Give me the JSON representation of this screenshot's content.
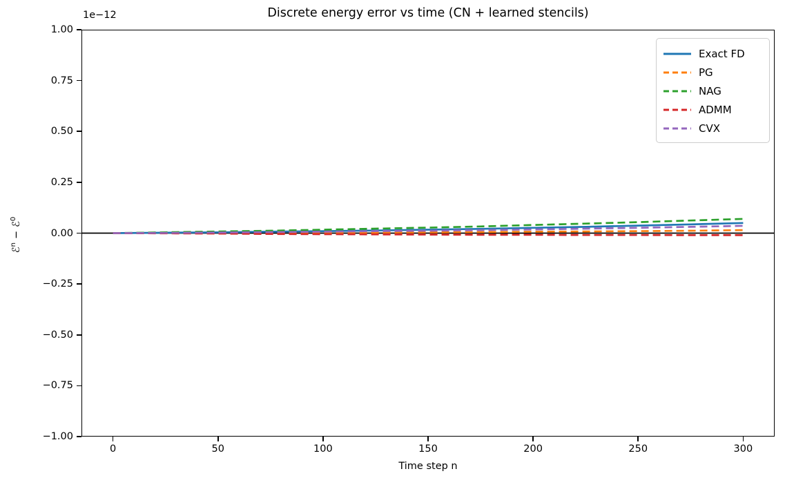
{
  "chart_data": {
    "type": "line",
    "title": "Discrete energy error vs time (CN + learned stencils)",
    "xlabel": "Time step n",
    "ylabel": "ℰⁿ − ℰ⁰",
    "ylabel_parts": {
      "e_n": "ℰ",
      "sup_n": "n",
      "minus": "−",
      "e_0": "ℰ",
      "sup_0": "0"
    },
    "y_offset_text": "1e−12",
    "unit_scale": 1e-12,
    "xlim": [
      -15,
      315
    ],
    "ylim": [
      -1.0,
      1.0
    ],
    "x_ticks": [
      0,
      50,
      100,
      150,
      200,
      250,
      300
    ],
    "x_tick_labels": [
      "0",
      "50",
      "100",
      "150",
      "200",
      "250",
      "300"
    ],
    "y_ticks": [
      1.0,
      0.75,
      0.5,
      0.25,
      0.0,
      -0.25,
      -0.5,
      -0.75,
      -1.0
    ],
    "y_tick_labels": [
      "1.00",
      "0.75",
      "0.50",
      "0.25",
      "0.00",
      "−0.25",
      "−0.50",
      "−0.75",
      "−1.00"
    ],
    "grid": false,
    "zero_line": true,
    "legend_position": "upper right",
    "x": [
      0,
      25,
      50,
      75,
      100,
      125,
      150,
      175,
      200,
      225,
      250,
      275,
      300
    ],
    "series": [
      {
        "name": "Exact FD",
        "color": "#1f77b4",
        "dash": "solid",
        "values": [
          0.0,
          0.002,
          0.004,
          0.007,
          0.01,
          0.013,
          0.017,
          0.021,
          0.026,
          0.031,
          0.037,
          0.043,
          0.05
        ]
      },
      {
        "name": "PG",
        "color": "#ff7f0e",
        "dash": "dashed",
        "values": [
          0.0,
          0.0,
          0.001,
          0.001,
          0.002,
          0.003,
          0.004,
          0.005,
          0.007,
          0.008,
          0.01,
          0.012,
          0.015
        ]
      },
      {
        "name": "NAG",
        "color": "#2ca02c",
        "dash": "dashed",
        "values": [
          0.0,
          0.004,
          0.008,
          0.012,
          0.017,
          0.022,
          0.027,
          0.033,
          0.04,
          0.047,
          0.054,
          0.062,
          0.07
        ]
      },
      {
        "name": "ADMM",
        "color": "#d62728",
        "dash": "dashed",
        "values": [
          0.0,
          -0.001,
          -0.002,
          -0.004,
          -0.005,
          -0.006,
          -0.007,
          -0.008,
          -0.008,
          -0.009,
          -0.009,
          -0.01,
          -0.01
        ]
      },
      {
        "name": "CVX",
        "color": "#9467bd",
        "dash": "dashed",
        "values": [
          0.0,
          0.001,
          0.003,
          0.005,
          0.007,
          0.01,
          0.012,
          0.015,
          0.018,
          0.022,
          0.026,
          0.031,
          0.036
        ]
      }
    ]
  }
}
